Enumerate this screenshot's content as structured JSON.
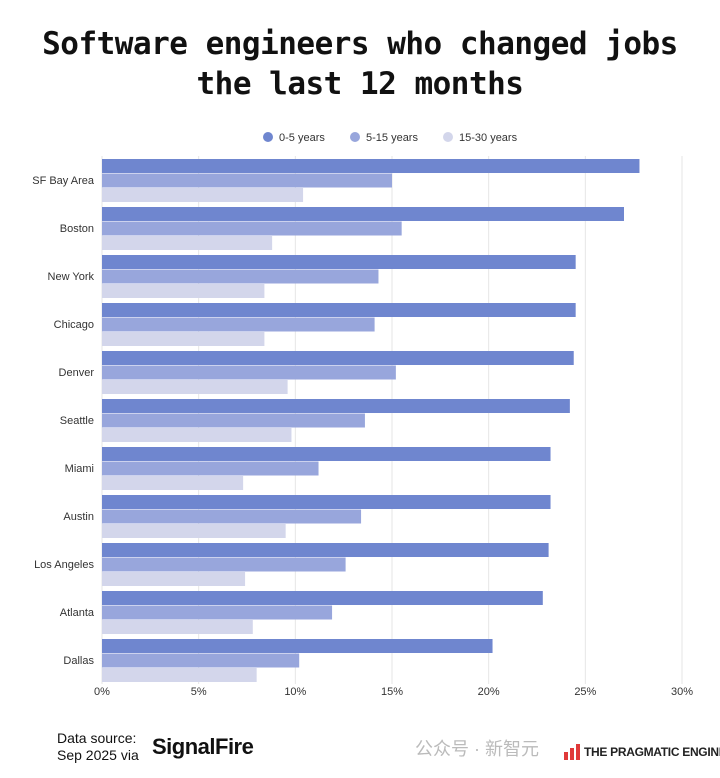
{
  "chart_data": {
    "type": "bar",
    "orientation": "horizontal",
    "title_lines": [
      "Software engineers who changed jobs",
      "the last 12 months"
    ],
    "categories": [
      "SF Bay Area",
      "Boston",
      "New York",
      "Chicago",
      "Denver",
      "Seattle",
      "Miami",
      "Austin",
      "Los Angeles",
      "Atlanta",
      "Dallas"
    ],
    "series": [
      {
        "name": "0-5 years",
        "color": "#6f86cf",
        "values": [
          27.8,
          27.0,
          24.5,
          24.5,
          24.4,
          24.2,
          23.2,
          23.2,
          23.1,
          22.8,
          20.2
        ]
      },
      {
        "name": "5-15 years",
        "color": "#98a6dc",
        "values": [
          15.0,
          15.5,
          14.3,
          14.1,
          15.2,
          13.6,
          11.2,
          13.4,
          12.6,
          11.9,
          10.2
        ]
      },
      {
        "name": "15-30 years",
        "color": "#d3d6eb",
        "values": [
          10.4,
          8.8,
          8.4,
          8.4,
          9.6,
          9.8,
          7.3,
          9.5,
          7.4,
          7.8,
          8.0
        ]
      }
    ],
    "xlim": [
      0,
      30
    ],
    "xticks": [
      "0%",
      "5%",
      "10%",
      "15%",
      "20%",
      "25%",
      "30%"
    ],
    "xlabel": "",
    "ylabel": "",
    "grid": true,
    "legend_position": "top-center"
  },
  "footer": {
    "source_line1": "Data source:",
    "source_line2": "Sep 2025 via",
    "source_logo": "SignalFire",
    "brand": "THE PRAGMATIC ENGINEER",
    "watermark": "公众号 · 新智元"
  }
}
